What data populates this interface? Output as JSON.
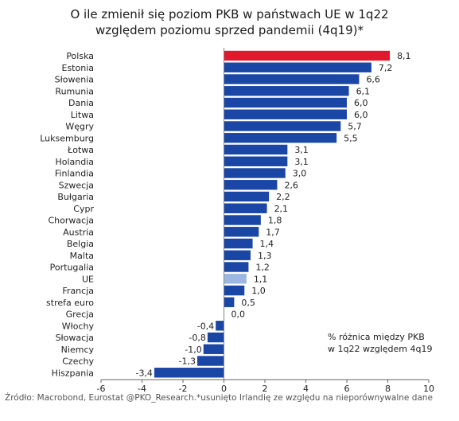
{
  "chart_data": {
    "type": "bar",
    "orientation": "horizontal",
    "title_line1": "O ile zmienił się poziom PKB w państwach UE w 1q22",
    "title_line2": "względem poziomu sprzed pandemii (4q19)*",
    "categories": [
      "Polska",
      "Estonia",
      "Słowenia",
      "Rumunia",
      "Dania",
      "Litwa",
      "Węgry",
      "Luksemburg",
      "Łotwa",
      "Holandia",
      "Finlandia",
      "Szwecja",
      "Bułgaria",
      "Cypr",
      "Chorwacja",
      "Austria",
      "Belgia",
      "Malta",
      "Portugalia",
      "UE",
      "Francja",
      "strefa euro",
      "Grecja",
      "Włochy",
      "Słowacja",
      "Niemcy",
      "Czechy",
      "Hiszpania"
    ],
    "values": [
      8.1,
      7.2,
      6.6,
      6.1,
      6.0,
      6.0,
      5.7,
      5.5,
      3.1,
      3.1,
      3.0,
      2.6,
      2.2,
      2.1,
      1.8,
      1.7,
      1.4,
      1.3,
      1.2,
      1.1,
      1.0,
      0.5,
      0.0,
      -0.4,
      -0.8,
      -1.0,
      -1.3,
      -3.4
    ],
    "value_labels": [
      "8,1",
      "7,2",
      "6,6",
      "6,1",
      "6,0",
      "6,0",
      "5,7",
      "5,5",
      "3,1",
      "3,1",
      "3,0",
      "2,6",
      "2,2",
      "2,1",
      "1,8",
      "1,7",
      "1,4",
      "1,3",
      "1,2",
      "1,1",
      "1,0",
      "0,5",
      "0,0",
      "-0,4",
      "-0,8",
      "-1,0",
      "-1,3",
      "-3,4"
    ],
    "highlight": {
      "Polska": "#e0192d",
      "UE": "#9db8e0"
    },
    "bar_color": "#1a46a6",
    "xlim": [
      -6,
      10
    ],
    "xticks": [
      "-6",
      "-4",
      "-2",
      "0",
      "2",
      "4",
      "6",
      "8",
      "10"
    ],
    "grid": false,
    "annotation_line1": "% różnica między PKB",
    "annotation_line2": "w 1q22 względem 4q19"
  },
  "footer": {
    "source": "Źródło: Macrobond, Eurostat @PKO_Research.*usunięto Irlandię ze względu na nieporównywalne dane"
  }
}
